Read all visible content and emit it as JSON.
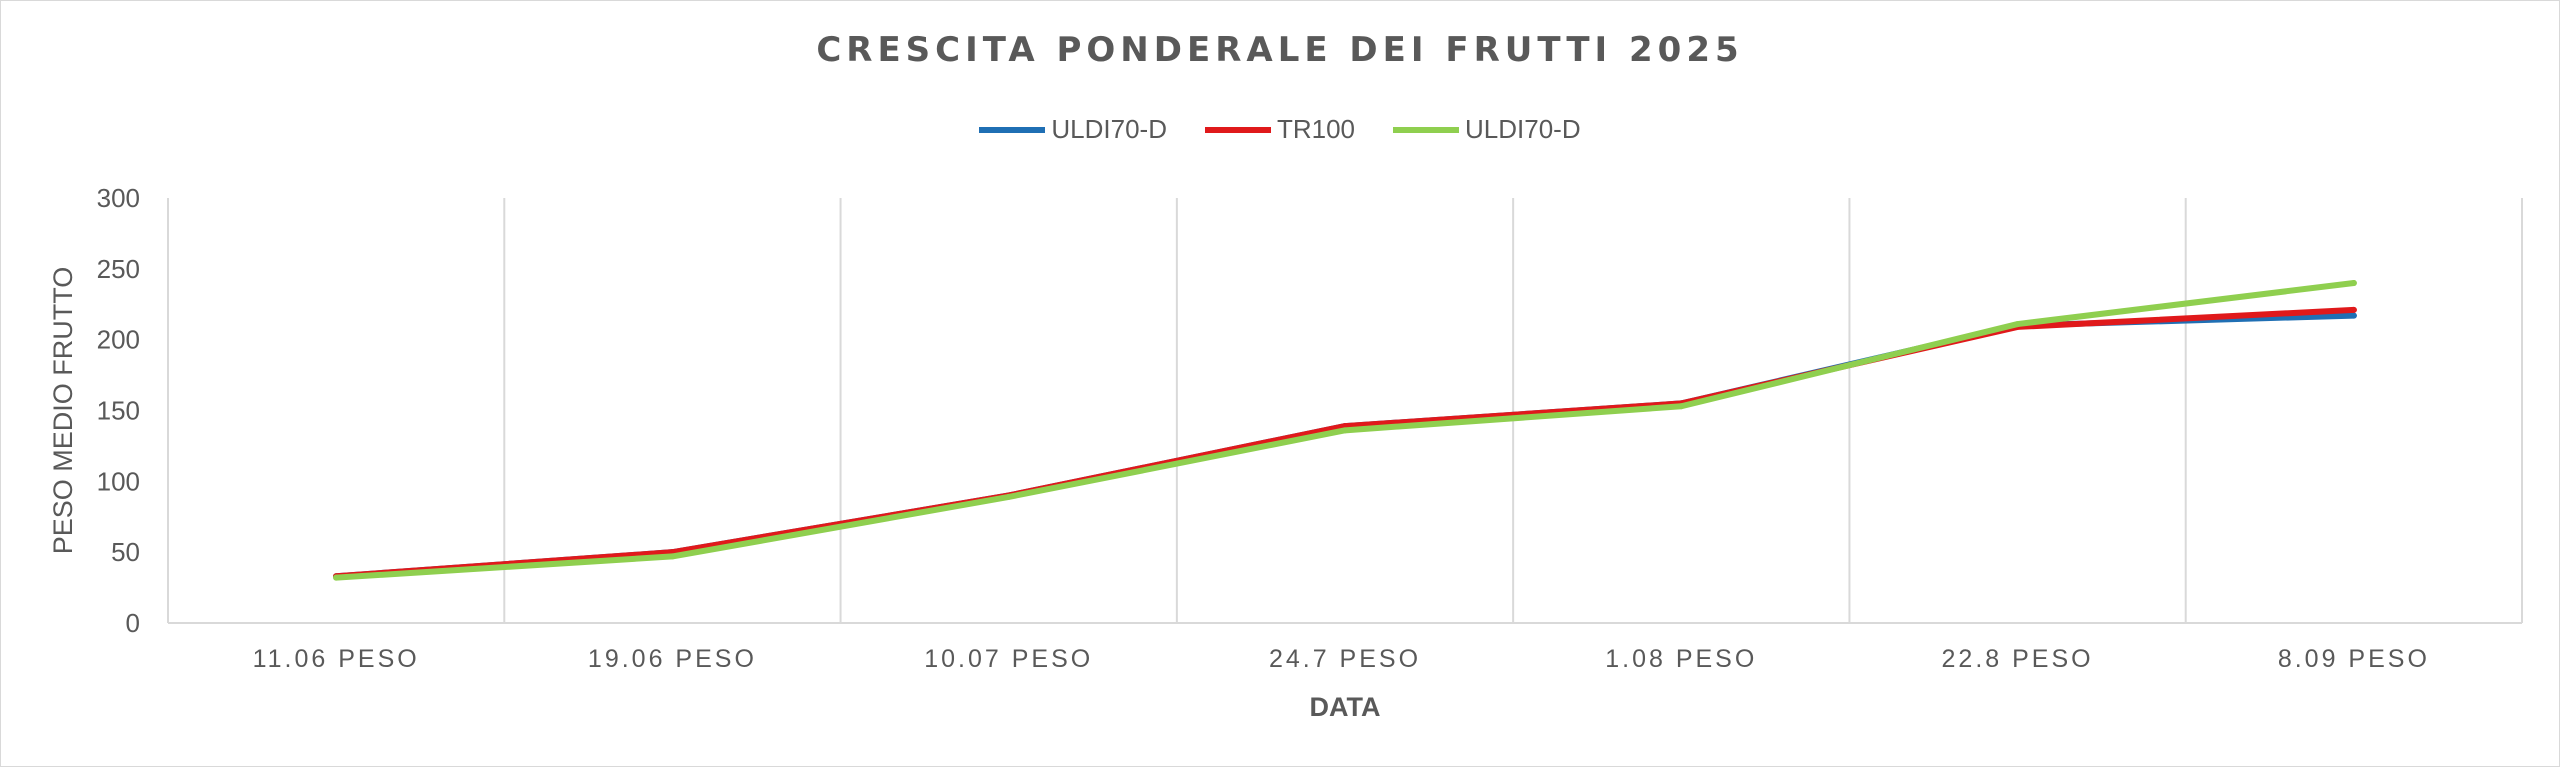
{
  "chart_data": {
    "type": "line",
    "title": "CRESCITA PONDERALE  DEI FRUTTI 2025",
    "xlabel": "DATA",
    "ylabel": "PESO MEDIO FRUTTO",
    "ylim": [
      0,
      300
    ],
    "yticks": [
      "0",
      "50",
      "100",
      "150",
      "200",
      "250",
      "300"
    ],
    "categories": [
      "11.06 PESO",
      "19.06 PESO",
      "10.07 PESO",
      "24.7 PESO",
      "1.08 PESO",
      "22.8 PESO",
      "8.09 PESO"
    ],
    "grid": "vertical",
    "legend_position": "top",
    "series": [
      {
        "name": "ULDI70-D",
        "color": "#1f6fb4",
        "values": [
          33,
          50,
          90,
          139,
          155,
          210,
          217
        ]
      },
      {
        "name": "TR100",
        "color": "#e0191b",
        "values": [
          33,
          50,
          90,
          139,
          155,
          209,
          221
        ]
      },
      {
        "name": "ULDI70-D",
        "color": "#8fcf4f",
        "values": [
          32,
          47,
          89,
          136,
          153,
          211,
          240
        ]
      }
    ]
  }
}
